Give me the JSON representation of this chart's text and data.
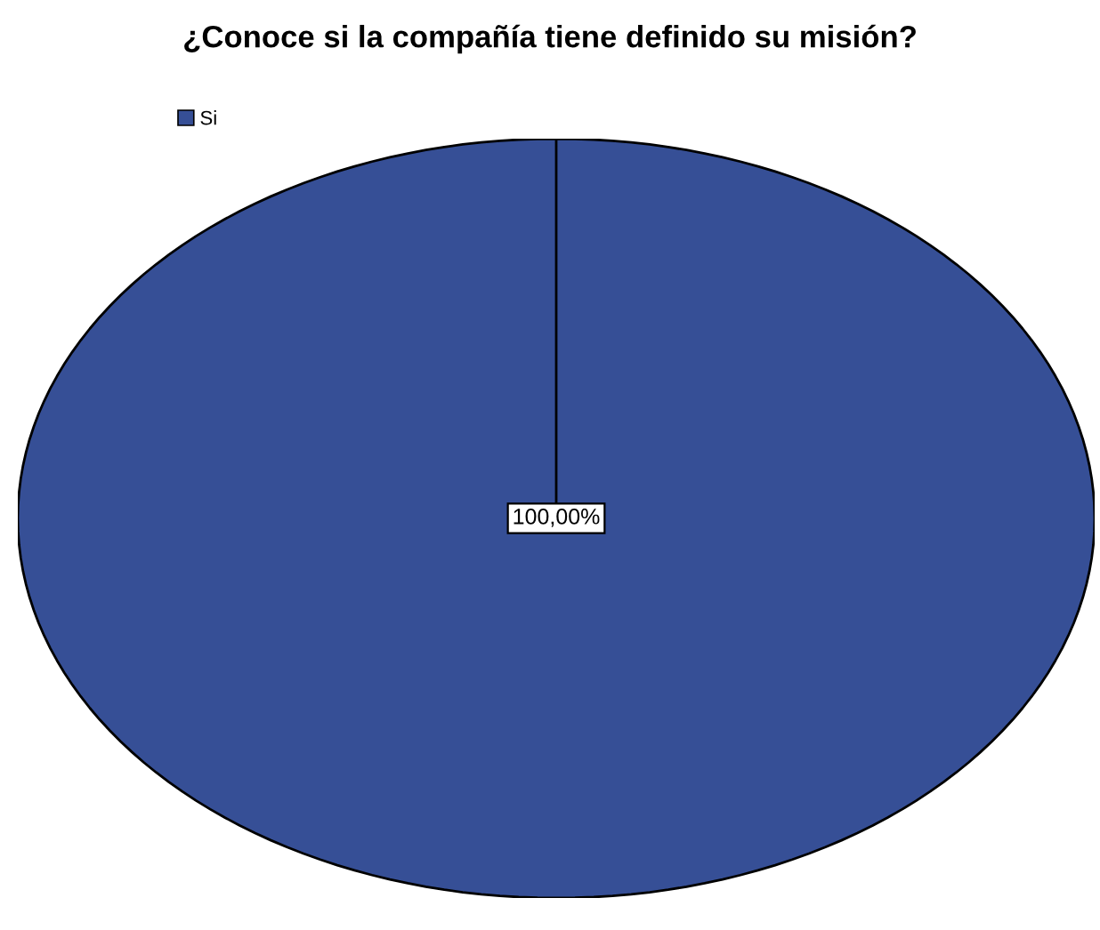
{
  "chart_data": {
    "type": "pie",
    "title": "¿Conoce si la compañía tiene definido su misión?",
    "categories": [
      "Si"
    ],
    "values": [
      100
    ],
    "colors": [
      "#364f96"
    ],
    "value_labels": [
      "100,00%"
    ],
    "legend": "top left"
  }
}
